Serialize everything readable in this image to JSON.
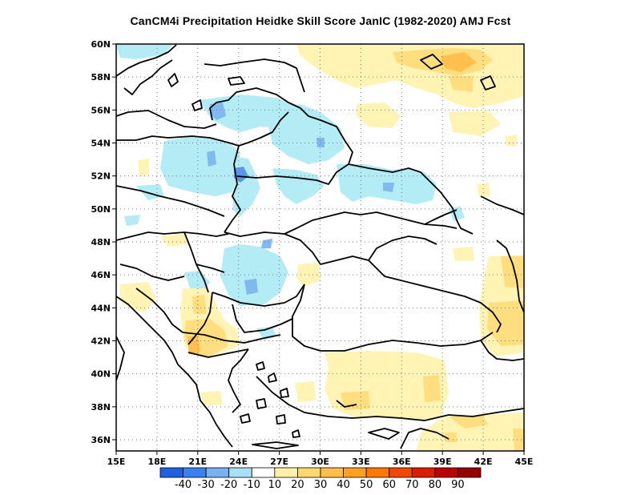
{
  "title": "CanCM4i  Precipitation Heidke Skill Score JanIC (1982-2020) AMJ Fcst",
  "lat_labels": [
    "60N",
    "58N",
    "56N",
    "54N",
    "52N",
    "50N",
    "48N",
    "46N",
    "44N",
    "42N",
    "40N",
    "38N",
    "36N"
  ],
  "lon_labels": [
    "15E",
    "18E",
    "21E",
    "24E",
    "27E",
    "30E",
    "33E",
    "36E",
    "39E",
    "42E",
    "45E"
  ],
  "colorbar": {
    "colors": [
      "#2060e0",
      "#3a80f0",
      "#78b0f0",
      "#a8e0f8",
      "#ffffff",
      "#fff2a8",
      "#ffd870",
      "#ffbe48",
      "#ffa020",
      "#ff7800",
      "#f04800",
      "#dc1c00",
      "#bc0000",
      "#980000"
    ],
    "labels": [
      "-40",
      "-30",
      "-20",
      "-10",
      "10",
      "20",
      "30",
      "40",
      "50",
      "60",
      "70",
      "80",
      "90"
    ]
  },
  "colors": {
    "pos_light": "#fff4b4",
    "pos_mid": "#ffde80",
    "pos_strong": "#ffc050",
    "neg_light": "#b4ecf6",
    "neg_mid": "#80b8f0",
    "neg_strong": "#5a96ec"
  }
}
